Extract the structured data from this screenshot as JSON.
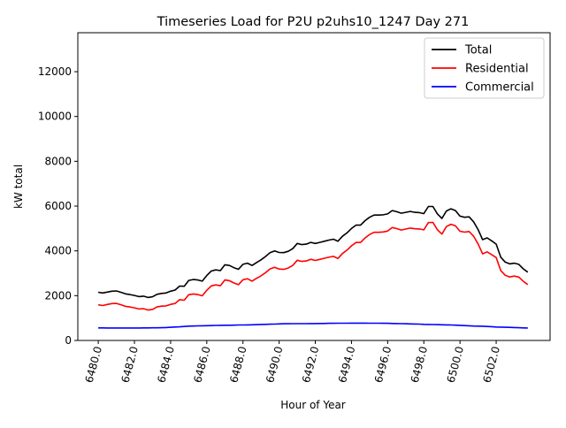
{
  "chart_data": {
    "type": "line",
    "title": "Timeseries Load for P2U p2uhs10_1247  Day 271",
    "xlabel": "Hour of Year",
    "ylabel": "kW total",
    "xlim": [
      6478.87,
      6504.98
    ],
    "ylim": [
      0,
      13740
    ],
    "x_start": 6480,
    "x_step": 0.25,
    "xticks": [
      6480,
      6482,
      6484,
      6486,
      6488,
      6490,
      6492,
      6494,
      6496,
      6498,
      6500,
      6502
    ],
    "xtick_labels": [
      "6480.0",
      "6482.0",
      "6484.0",
      "6486.0",
      "6488.0",
      "6490.0",
      "6492.0",
      "6494.0",
      "6496.0",
      "6498.0",
      "6500.0",
      "6502.0"
    ],
    "yticks": [
      0,
      2000,
      4000,
      6000,
      8000,
      10000,
      12000
    ],
    "ytick_labels": [
      "0",
      "2000",
      "4000",
      "6000",
      "8000",
      "10000",
      "12000"
    ],
    "grid": false,
    "legend_position": "top-right",
    "series": [
      {
        "name": "Total",
        "color": "#000000",
        "values": [
          2150,
          2120,
          2160,
          2200,
          2210,
          2150,
          2080,
          2050,
          2010,
          1960,
          1980,
          1920,
          1950,
          2060,
          2100,
          2120,
          2200,
          2250,
          2430,
          2420,
          2680,
          2720,
          2700,
          2650,
          2900,
          3100,
          3150,
          3120,
          3380,
          3350,
          3250,
          3180,
          3400,
          3450,
          3350,
          3480,
          3600,
          3750,
          3920,
          4000,
          3930,
          3920,
          3980,
          4100,
          4330,
          4280,
          4300,
          4380,
          4330,
          4380,
          4430,
          4480,
          4520,
          4430,
          4650,
          4800,
          5000,
          5150,
          5150,
          5350,
          5500,
          5600,
          5600,
          5610,
          5650,
          5800,
          5750,
          5680,
          5720,
          5760,
          5720,
          5710,
          5660,
          5980,
          5980,
          5650,
          5450,
          5780,
          5880,
          5800,
          5550,
          5500,
          5520,
          5300,
          4950,
          4500,
          4580,
          4450,
          4300,
          3720,
          3500,
          3420,
          3450,
          3400,
          3200,
          3050
        ]
      },
      {
        "name": "Residential",
        "color": "#ff0000",
        "values": [
          1590,
          1560,
          1605,
          1645,
          1655,
          1595,
          1525,
          1495,
          1455,
          1405,
          1420,
          1360,
          1385,
          1495,
          1530,
          1545,
          1610,
          1650,
          1820,
          1795,
          2040,
          2075,
          2050,
          1995,
          2240,
          2435,
          2480,
          2445,
          2700,
          2670,
          2565,
          2490,
          2710,
          2755,
          2650,
          2775,
          2885,
          3030,
          3195,
          3270,
          3190,
          3175,
          3235,
          3350,
          3580,
          3530,
          3550,
          3625,
          3575,
          3620,
          3670,
          3715,
          3755,
          3660,
          3880,
          4030,
          4225,
          4375,
          4375,
          4575,
          4730,
          4830,
          4830,
          4845,
          4885,
          5040,
          4995,
          4930,
          4975,
          5020,
          4985,
          4980,
          4940,
          5265,
          5270,
          4945,
          4750,
          5085,
          5190,
          5115,
          4875,
          4835,
          4865,
          4655,
          4310,
          3865,
          3955,
          3835,
          3700,
          3125,
          2910,
          2835,
          2875,
          2830,
          2640,
          2495
        ]
      },
      {
        "name": "Commercial",
        "color": "#0000ff",
        "values": [
          560,
          560,
          555,
          555,
          555,
          555,
          555,
          555,
          555,
          555,
          560,
          560,
          565,
          565,
          570,
          575,
          590,
          600,
          610,
          625,
          640,
          645,
          650,
          655,
          660,
          665,
          670,
          675,
          680,
          680,
          685,
          690,
          690,
          695,
          700,
          705,
          715,
          720,
          725,
          730,
          740,
          745,
          745,
          750,
          750,
          750,
          750,
          755,
          755,
          760,
          760,
          765,
          765,
          770,
          770,
          770,
          775,
          775,
          775,
          775,
          770,
          770,
          770,
          765,
          765,
          760,
          755,
          750,
          745,
          740,
          735,
          730,
          720,
          715,
          710,
          705,
          700,
          695,
          690,
          685,
          675,
          665,
          655,
          645,
          640,
          635,
          625,
          615,
          600,
          595,
          590,
          585,
          575,
          570,
          560,
          555
        ]
      }
    ]
  }
}
